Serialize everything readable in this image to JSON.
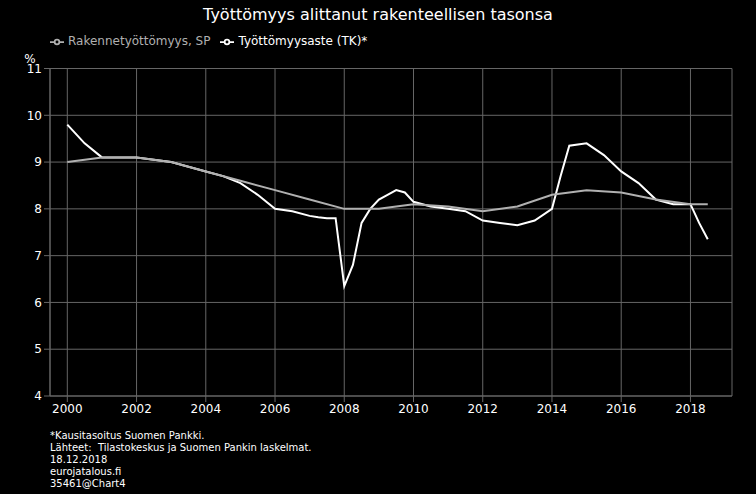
{
  "chart_data": {
    "type": "line",
    "title": "Työttömyys alittanut rakenteellisen tasonsa",
    "ylabel": "%",
    "annotations": [
      "*Kausitasoitus Suomen Pankki.",
      "Lähteet:  Tilastokeskus ja Suomen Pankin laskelmat.",
      "18.12.2018",
      "eurojatalous.fi",
      "35461@Chart4"
    ],
    "xlim": [
      1999.5,
      2019.2
    ],
    "xticks": [
      2000,
      2002,
      2004,
      2006,
      2008,
      2010,
      2012,
      2014,
      2016,
      2018
    ],
    "ylim": [
      4,
      11
    ],
    "yticks": [
      4,
      5,
      6,
      7,
      8,
      9,
      10,
      11
    ],
    "grid": true,
    "legend": "top",
    "series": [
      {
        "name": "Työttömyysaste (TK)*",
        "color": "#ffffff",
        "x": [
          2000.0,
          2000.5,
          2001.0,
          2001.5,
          2002.0,
          2002.5,
          2003.0,
          2003.5,
          2004.0,
          2004.5,
          2005.0,
          2005.5,
          2006.0,
          2006.5,
          2007.0,
          2007.25,
          2007.5,
          2007.75,
          2008.0,
          2008.25,
          2008.5,
          2008.75,
          2009.0,
          2009.25,
          2009.5,
          2009.75,
          2010.0,
          2010.5,
          2011.0,
          2011.5,
          2012.0,
          2012.5,
          2013.0,
          2013.5,
          2014.0,
          2014.25,
          2014.5,
          2015.0,
          2015.5,
          2016.0,
          2016.5,
          2017.0,
          2017.5,
          2018.0,
          2018.25,
          2018.5
        ],
        "values": [
          9.8,
          9.4,
          9.1,
          9.1,
          9.1,
          9.05,
          9.0,
          8.9,
          8.8,
          8.7,
          8.55,
          8.3,
          8.0,
          7.95,
          7.85,
          7.82,
          7.8,
          7.8,
          6.35,
          6.8,
          7.7,
          8.0,
          8.2,
          8.3,
          8.4,
          8.35,
          8.15,
          8.05,
          8.0,
          7.95,
          7.75,
          7.7,
          7.65,
          7.75,
          8.0,
          8.7,
          9.35,
          9.4,
          9.15,
          8.8,
          8.55,
          8.2,
          8.1,
          8.1,
          7.7,
          7.35
        ]
      },
      {
        "name": "Rakennetyöttömyys, SP",
        "color": "#b0b0b0",
        "x": [
          2000.0,
          2001.0,
          2002.0,
          2003.0,
          2004.0,
          2005.0,
          2006.0,
          2007.0,
          2008.0,
          2009.0,
          2010.0,
          2011.0,
          2012.0,
          2013.0,
          2014.0,
          2015.0,
          2016.0,
          2017.0,
          2018.0,
          2018.5
        ],
        "values": [
          9.0,
          9.1,
          9.1,
          9.0,
          8.8,
          8.6,
          8.4,
          8.2,
          8.0,
          8.0,
          8.1,
          8.05,
          7.95,
          8.05,
          8.3,
          8.4,
          8.35,
          8.2,
          8.1,
          8.1
        ]
      }
    ]
  }
}
